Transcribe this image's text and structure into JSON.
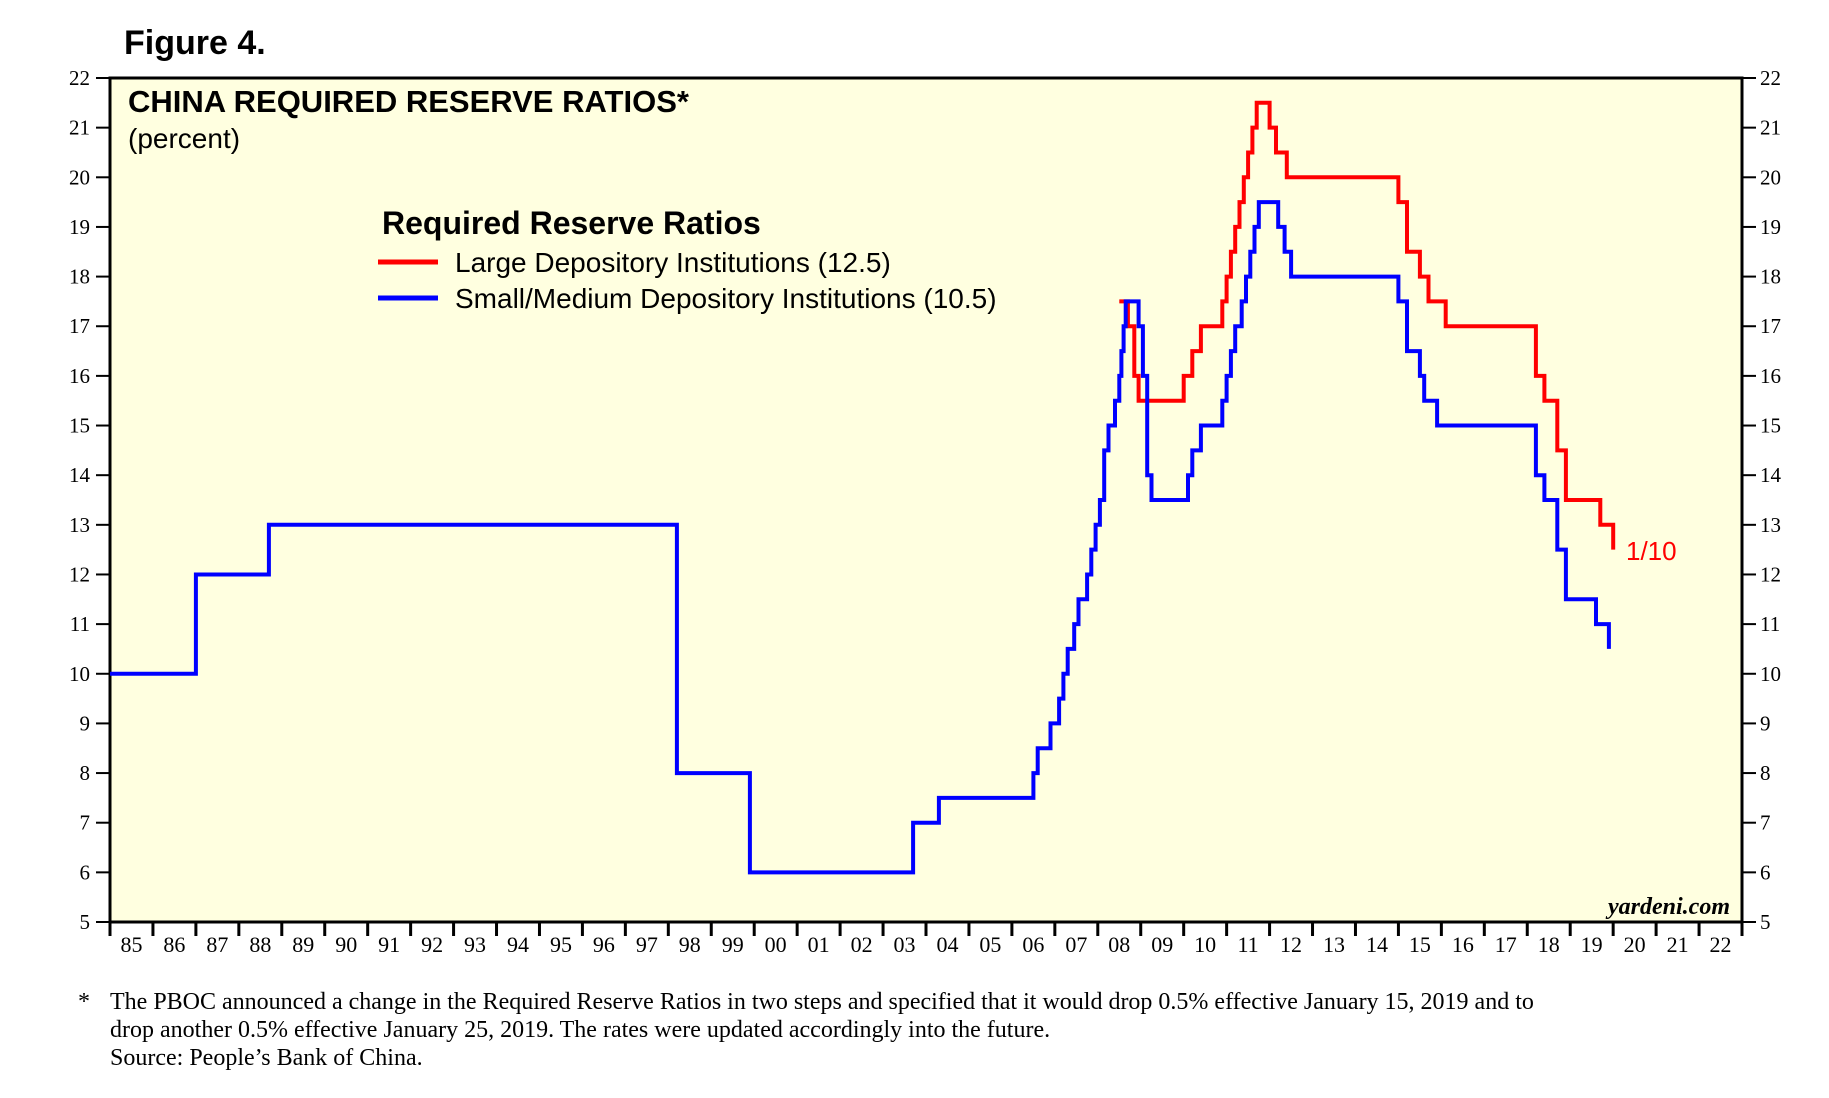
{
  "figure_label": "Figure 4.",
  "footnote": {
    "marker": "*",
    "line1": "The PBOC announced a change in the Required Reserve Ratios in two steps and specified that it would drop 0.5% effective January 15, 2019 and to",
    "line2": "drop another 0.5% effective January 25, 2019. The rates were updated accordingly into the future.",
    "line3": "Source: People’s Bank of China."
  },
  "colors": {
    "plot_bg": "#FFFFE0",
    "red": "#FF0000",
    "blue": "#0000FF"
  },
  "chart_data": {
    "type": "line",
    "title": "CHINA REQUIRED RESERVE RATIOS*",
    "subtitle": "(percent)",
    "legend_title": "Required Reserve Ratios",
    "legend_position": "top-center",
    "watermark": "yardeni.com",
    "annotation": "1/10",
    "ylim": [
      5,
      22
    ],
    "y_ticks": [
      "5",
      "6",
      "7",
      "8",
      "9",
      "10",
      "11",
      "12",
      "13",
      "14",
      "15",
      "16",
      "17",
      "18",
      "19",
      "20",
      "21",
      "22"
    ],
    "xlim": [
      1985,
      2023
    ],
    "x_tick_labels": [
      "85",
      "86",
      "87",
      "88",
      "89",
      "90",
      "91",
      "92",
      "93",
      "94",
      "95",
      "96",
      "97",
      "98",
      "99",
      "00",
      "01",
      "02",
      "03",
      "04",
      "05",
      "06",
      "07",
      "08",
      "09",
      "10",
      "11",
      "12",
      "13",
      "14",
      "15",
      "16",
      "17",
      "18",
      "19",
      "20",
      "21",
      "22"
    ],
    "grid": false,
    "series": [
      {
        "name": "Large Depository Institutions (12.5)",
        "color": "#FF0000",
        "points": [
          [
            2008.5,
            17.5
          ],
          [
            2008.7,
            17.0
          ],
          [
            2008.85,
            16.0
          ],
          [
            2008.95,
            15.5
          ],
          [
            2010.0,
            16.0
          ],
          [
            2010.2,
            16.5
          ],
          [
            2010.4,
            17.0
          ],
          [
            2010.9,
            17.5
          ],
          [
            2011.0,
            18.0
          ],
          [
            2011.1,
            18.5
          ],
          [
            2011.2,
            19.0
          ],
          [
            2011.3,
            19.5
          ],
          [
            2011.4,
            20.0
          ],
          [
            2011.5,
            20.5
          ],
          [
            2011.6,
            21.0
          ],
          [
            2011.7,
            21.5
          ],
          [
            2012.0,
            21.0
          ],
          [
            2012.15,
            20.5
          ],
          [
            2012.4,
            20.0
          ],
          [
            2015.0,
            19.5
          ],
          [
            2015.2,
            18.5
          ],
          [
            2015.5,
            18.0
          ],
          [
            2015.7,
            17.5
          ],
          [
            2016.1,
            17.0
          ],
          [
            2018.2,
            16.0
          ],
          [
            2018.4,
            15.5
          ],
          [
            2018.7,
            14.5
          ],
          [
            2018.9,
            13.5
          ],
          [
            2019.7,
            13.0
          ],
          [
            2020.0,
            12.5
          ]
        ]
      },
      {
        "name": "Small/Medium Depository Institutions (10.5)",
        "color": "#0000FF",
        "points": [
          [
            1985.0,
            10.0
          ],
          [
            1987.0,
            12.0
          ],
          [
            1988.7,
            13.0
          ],
          [
            1998.2,
            8.0
          ],
          [
            1999.9,
            6.0
          ],
          [
            2003.7,
            7.0
          ],
          [
            2004.3,
            7.5
          ],
          [
            2006.5,
            8.0
          ],
          [
            2006.6,
            8.5
          ],
          [
            2006.9,
            9.0
          ],
          [
            2007.1,
            9.5
          ],
          [
            2007.2,
            10.0
          ],
          [
            2007.3,
            10.5
          ],
          [
            2007.45,
            11.0
          ],
          [
            2007.55,
            11.5
          ],
          [
            2007.75,
            12.0
          ],
          [
            2007.85,
            12.5
          ],
          [
            2007.95,
            13.0
          ],
          [
            2008.05,
            13.5
          ],
          [
            2008.15,
            14.5
          ],
          [
            2008.25,
            15.0
          ],
          [
            2008.4,
            15.5
          ],
          [
            2008.5,
            16.0
          ],
          [
            2008.55,
            16.5
          ],
          [
            2008.6,
            17.0
          ],
          [
            2008.65,
            17.5
          ],
          [
            2008.95,
            17.0
          ],
          [
            2009.05,
            16.0
          ],
          [
            2009.15,
            14.0
          ],
          [
            2009.25,
            13.5
          ],
          [
            2010.1,
            14.0
          ],
          [
            2010.2,
            14.5
          ],
          [
            2010.4,
            15.0
          ],
          [
            2010.9,
            15.5
          ],
          [
            2011.0,
            16.0
          ],
          [
            2011.1,
            16.5
          ],
          [
            2011.2,
            17.0
          ],
          [
            2011.35,
            17.5
          ],
          [
            2011.45,
            18.0
          ],
          [
            2011.55,
            18.5
          ],
          [
            2011.65,
            19.0
          ],
          [
            2011.75,
            19.5
          ],
          [
            2012.2,
            19.0
          ],
          [
            2012.35,
            18.5
          ],
          [
            2012.5,
            18.0
          ],
          [
            2015.0,
            17.5
          ],
          [
            2015.2,
            16.5
          ],
          [
            2015.5,
            16.0
          ],
          [
            2015.6,
            15.5
          ],
          [
            2015.9,
            15.0
          ],
          [
            2018.2,
            14.0
          ],
          [
            2018.4,
            13.5
          ],
          [
            2018.7,
            12.5
          ],
          [
            2018.9,
            11.5
          ],
          [
            2019.6,
            11.0
          ],
          [
            2019.9,
            10.5
          ]
        ]
      }
    ]
  }
}
